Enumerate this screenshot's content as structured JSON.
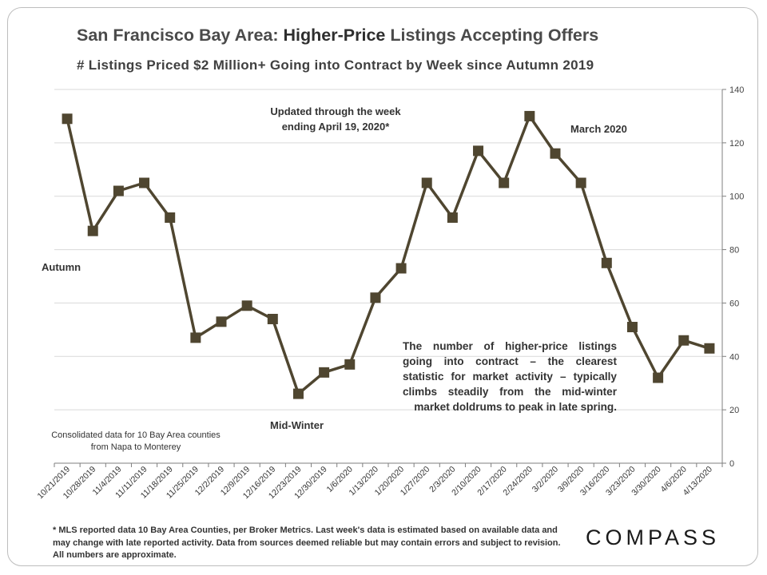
{
  "header": {
    "title_part1": "San Francisco Bay Area: ",
    "title_part2": "Higher-Price",
    "title_part3": " Listings Accepting Offers",
    "subtitle": "# Listings Priced $2 Million+ Going into Contract by Week since Autumn 2019"
  },
  "annotations": {
    "updated_line1": "Updated through the week",
    "updated_line2": "ending April 19, 2020*",
    "march": "March 2020",
    "autumn": "Autumn",
    "midwinter": "Mid-Winter",
    "callout_body": "The number of higher-price listings going into contract – the clearest statistic for market activity – typically climbs steadily from the mid-winter",
    "callout_last": "market doldrums to peak in late spring.",
    "consolidated": "Consolidated data for 10 Bay Area counties from Napa to Monterey"
  },
  "footnote": "* MLS reported data 10 Bay Area Counties, per Broker Metrics. Last week's data is estimated based on available data and may change with late reported activity. Data from sources deemed reliable but may contain errors and subject to revision. All numbers are approximate.",
  "logo": "COMPASS",
  "colors": {
    "series": "#4f4630",
    "grid": "#d9d9d9",
    "axis": "#7f7f7f"
  },
  "chart_data": {
    "type": "line",
    "title": "San Francisco Bay Area: Higher-Price Listings Accepting Offers",
    "subtitle": "# Listings Priced $2 Million+ Going into Contract by Week since Autumn 2019",
    "categories": [
      "10/21/2019",
      "10/28/2019",
      "11/4/2019",
      "11/11/2019",
      "11/18/2019",
      "11/25/2019",
      "12/2/2019",
      "12/9/2019",
      "12/16/2019",
      "12/23/2019",
      "12/30/2019",
      "1/6/2020",
      "1/13/2020",
      "1/20/2020",
      "1/27/2020",
      "2/3/2020",
      "2/10/2020",
      "2/17/2020",
      "2/24/2020",
      "3/2/2020",
      "3/9/2020",
      "3/16/2020",
      "3/23/2020",
      "3/30/2020",
      "4/6/2020",
      "4/13/2020"
    ],
    "values": [
      129,
      87,
      102,
      105,
      92,
      47,
      53,
      59,
      54,
      26,
      34,
      37,
      62,
      73,
      105,
      92,
      117,
      105,
      130,
      116,
      105,
      75,
      51,
      32,
      46,
      43
    ],
    "y_axis_position": "right",
    "ylim": [
      0,
      140
    ],
    "yticks": [
      0,
      20,
      40,
      60,
      80,
      100,
      120,
      140
    ],
    "grid": true,
    "marker": "square"
  }
}
